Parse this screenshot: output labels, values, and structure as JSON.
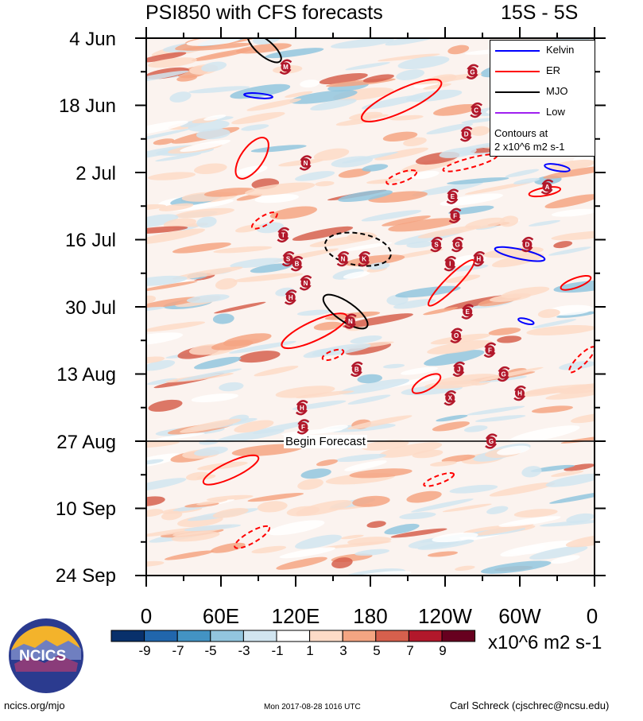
{
  "title": "PSI850 with CFS forecasts",
  "lat_range": "15S - 5S",
  "y_labels": [
    "4 Jun",
    "18 Jun",
    "2 Jul",
    "16 Jul",
    "30 Jul",
    "13 Aug",
    "27 Aug",
    "10 Sep",
    "24 Sep"
  ],
  "x_labels": [
    "0",
    "60E",
    "120E",
    "180",
    "120W",
    "60W",
    "0"
  ],
  "begin_forecast": "Begin Forecast",
  "legend": {
    "items": [
      {
        "label": "Kelvin",
        "color": "#0000ff"
      },
      {
        "label": "ER",
        "color": "#ff0000"
      },
      {
        "label": "MJO",
        "color": "#000000"
      },
      {
        "label": "Low",
        "color": "#a020f0"
      }
    ],
    "note1": "Contours at",
    "note2": "2 x10^6 m2 s-1"
  },
  "colorbar": {
    "labels": [
      "-9",
      "-7",
      "-5",
      "-3",
      "-1",
      "1",
      "3",
      "5",
      "7",
      "9"
    ],
    "colors": [
      "#08306b",
      "#2166ac",
      "#4393c3",
      "#92c5de",
      "#d1e5f0",
      "#ffffff",
      "#fddbc7",
      "#f4a582",
      "#d6604d",
      "#b2182b",
      "#67001f"
    ],
    "unit": "x10^6 m2 s-1"
  },
  "logo_text": "NCICS",
  "footer": {
    "left": "ncics.org/mjo",
    "center": "Mon 2017-08-28 1016 UTC",
    "right": "Carl Schreck (cjschrec@ncsu.edu)"
  },
  "chart_data": {
    "type": "heatmap",
    "title": "PSI850 with CFS forecasts",
    "subtitle": "15S - 5S",
    "x_axis": "longitude",
    "x_ticks": [
      "0",
      "60E",
      "120E",
      "180",
      "120W",
      "60W",
      "0"
    ],
    "y_axis": "time",
    "y_ticks": [
      "4 Jun",
      "18 Jun",
      "2 Jul",
      "16 Jul",
      "30 Jul",
      "13 Aug",
      "27 Aug",
      "10 Sep",
      "24 Sep"
    ],
    "forecast_start": "27 Aug",
    "color_levels": [
      -9,
      -7,
      -5,
      -3,
      -1,
      1,
      3,
      5,
      7,
      9
    ],
    "units": "x10^6 m2 s-1",
    "contour_interval": "2 x10^6 m2 s-1",
    "storm_markers": [
      {
        "letter": "M",
        "lon": 112,
        "date": "10 Jun"
      },
      {
        "letter": "G",
        "lon": 262,
        "date": "11 Jun"
      },
      {
        "letter": "C",
        "lon": 265,
        "date": "19 Jun"
      },
      {
        "letter": "D",
        "lon": 257,
        "date": "24 Jun"
      },
      {
        "letter": "N",
        "lon": 128,
        "date": "30 Jun"
      },
      {
        "letter": "A",
        "lon": 322,
        "date": "5 Jul"
      },
      {
        "letter": "E",
        "lon": 246,
        "date": "7 Jul"
      },
      {
        "letter": "F",
        "lon": 248,
        "date": "11 Jul"
      },
      {
        "letter": "T",
        "lon": 110,
        "date": "15 Jul"
      },
      {
        "letter": "S",
        "lon": 233,
        "date": "17 Jul"
      },
      {
        "letter": "G",
        "lon": 250,
        "date": "17 Jul"
      },
      {
        "letter": "D",
        "lon": 306,
        "date": "17 Jul"
      },
      {
        "letter": "N",
        "lon": 158,
        "date": "20 Jul"
      },
      {
        "letter": "K",
        "lon": 175,
        "date": "20 Jul"
      },
      {
        "letter": "S",
        "lon": 114,
        "date": "20 Jul"
      },
      {
        "letter": "B",
        "lon": 121,
        "date": "21 Jul"
      },
      {
        "letter": "I",
        "lon": 244,
        "date": "21 Jul"
      },
      {
        "letter": "H",
        "lon": 267,
        "date": "20 Jul"
      },
      {
        "letter": "N",
        "lon": 128,
        "date": "25 Jul"
      },
      {
        "letter": "H",
        "lon": 116,
        "date": "28 Jul"
      },
      {
        "letter": "E",
        "lon": 258,
        "date": "31 Jul"
      },
      {
        "letter": "N",
        "lon": 164,
        "date": "2 Aug"
      },
      {
        "letter": "O",
        "lon": 249,
        "date": "5 Aug"
      },
      {
        "letter": "F",
        "lon": 276,
        "date": "8 Aug"
      },
      {
        "letter": "B",
        "lon": 169,
        "date": "12 Aug"
      },
      {
        "letter": "J",
        "lon": 251,
        "date": "12 Aug"
      },
      {
        "letter": "G",
        "lon": 287,
        "date": "13 Aug"
      },
      {
        "letter": "H",
        "lon": 300,
        "date": "17 Aug"
      },
      {
        "letter": "X",
        "lon": 244,
        "date": "18 Aug"
      },
      {
        "letter": "H",
        "lon": 125,
        "date": "20 Aug"
      },
      {
        "letter": "F",
        "lon": 126,
        "date": "24 Aug"
      },
      {
        "letter": "G",
        "lon": 277,
        "date": "27 Aug"
      }
    ]
  }
}
